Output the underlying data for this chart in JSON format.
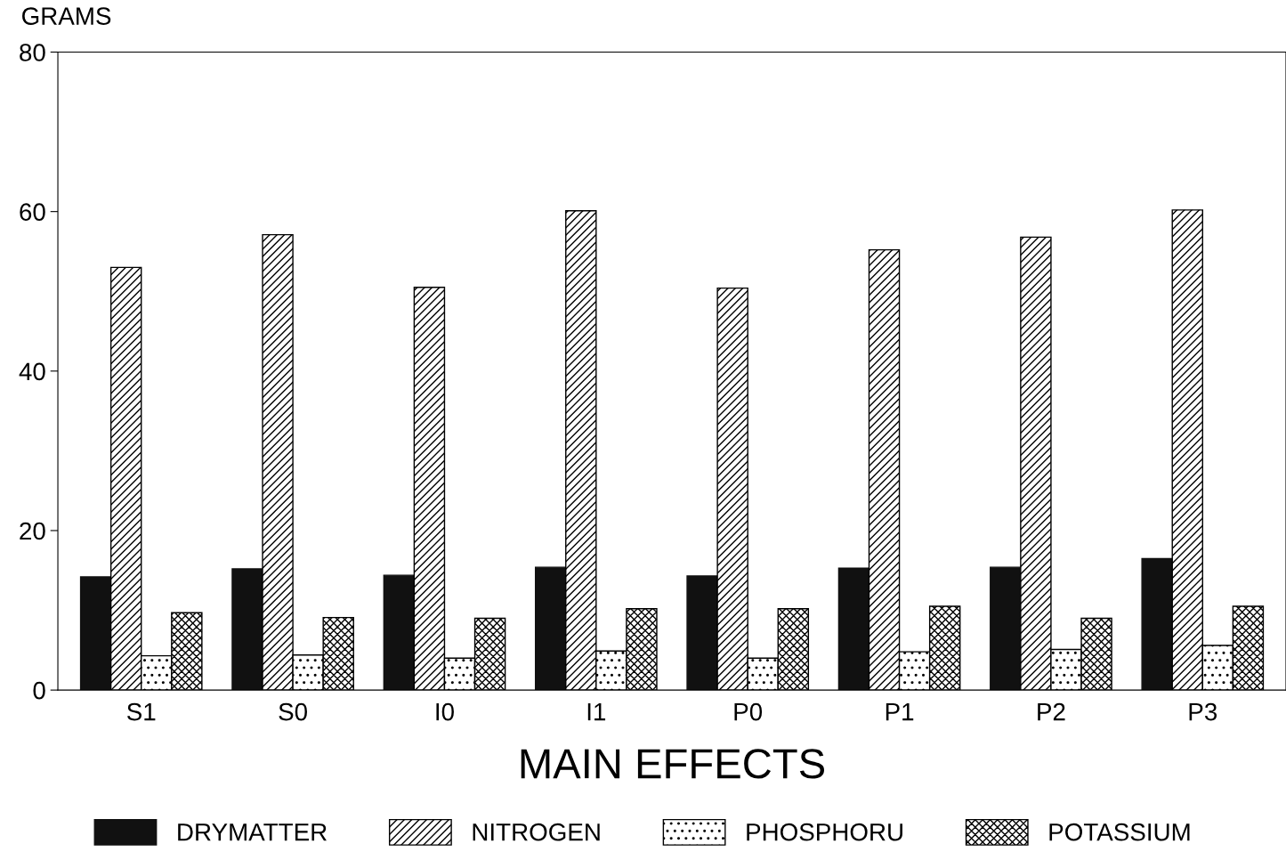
{
  "chart_data": {
    "type": "bar",
    "xlabel": "MAIN EFFECTS",
    "ylabel": "GRAMS",
    "categories": [
      "S1",
      "S0",
      "I0",
      "I1",
      "P0",
      "P1",
      "P2",
      "P3"
    ],
    "series": [
      {
        "name": "DRYMATTER",
        "color": "#111111",
        "values": [
          14.2,
          15.2,
          14.4,
          15.4,
          14.3,
          15.3,
          15.4,
          16.5
        ]
      },
      {
        "name": "NITROGEN",
        "color": "#000000",
        "values": [
          53.0,
          57.1,
          50.5,
          60.1,
          50.4,
          55.2,
          56.8,
          60.2
        ]
      },
      {
        "name": "PHOSPHORU",
        "color": "#000000",
        "values": [
          4.3,
          4.4,
          4.0,
          4.9,
          4.0,
          4.8,
          5.1,
          5.6
        ]
      },
      {
        "name": "POTASSIUM",
        "color": "#000000",
        "values": [
          9.7,
          9.1,
          9.0,
          10.2,
          10.2,
          10.5,
          9.0,
          10.5
        ]
      }
    ],
    "ylim": [
      0,
      80
    ],
    "yticks": [
      0,
      20,
      40,
      60,
      80
    ],
    "grid": false,
    "legend": "bottom"
  }
}
